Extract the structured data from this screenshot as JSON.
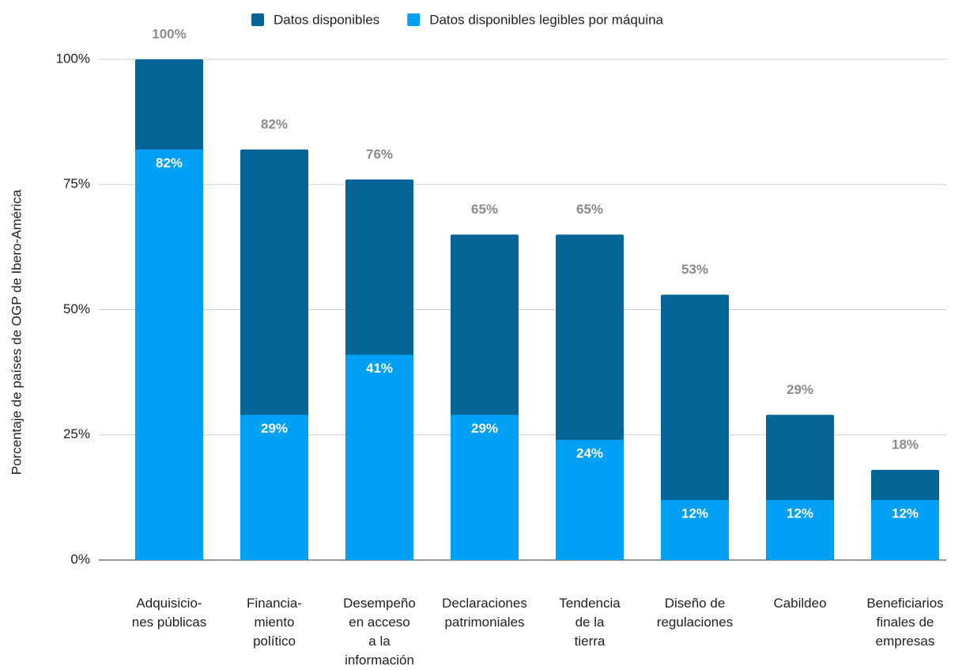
{
  "chart_data": {
    "type": "bar",
    "y_label": "Porcentaje de países de OGP de Ibero-América",
    "categories": [
      "Adquisicio-\nnes públicas",
      "Financia-\nmiento\npolítico",
      "Desempeño\nen acceso\na la\ninformación",
      "Declaraciones\npatrimoniales",
      "Tendencia\nde la\ntierra",
      "Diseño de\nregulaciones",
      "Cabildeo",
      "Beneficiarios\nfinales de\nempresas"
    ],
    "series": [
      {
        "name": "Datos disponibles",
        "color": "#046596",
        "values": [
          100,
          82,
          76,
          65,
          65,
          53,
          29,
          18
        ],
        "value_labels": [
          "100%",
          "82%",
          "76%",
          "65%",
          "65%",
          "53%",
          "29%",
          "18%"
        ]
      },
      {
        "name": "Datos disponibles legibles por máquina",
        "color": "#00a0f4",
        "values": [
          82,
          29,
          41,
          29,
          24,
          12,
          12,
          12
        ],
        "value_labels": [
          "82%",
          "29%",
          "41%",
          "29%",
          "24%",
          "12%",
          "12%",
          "12%"
        ]
      }
    ],
    "ylim": [
      0,
      100
    ],
    "yticks": [
      {
        "value": 0,
        "label": "0%"
      },
      {
        "value": 25,
        "label": "25%"
      },
      {
        "value": 50,
        "label": "50%"
      },
      {
        "value": 75,
        "label": "75%"
      },
      {
        "value": 100,
        "label": "100%"
      }
    ],
    "grid": true,
    "legend": "top"
  }
}
